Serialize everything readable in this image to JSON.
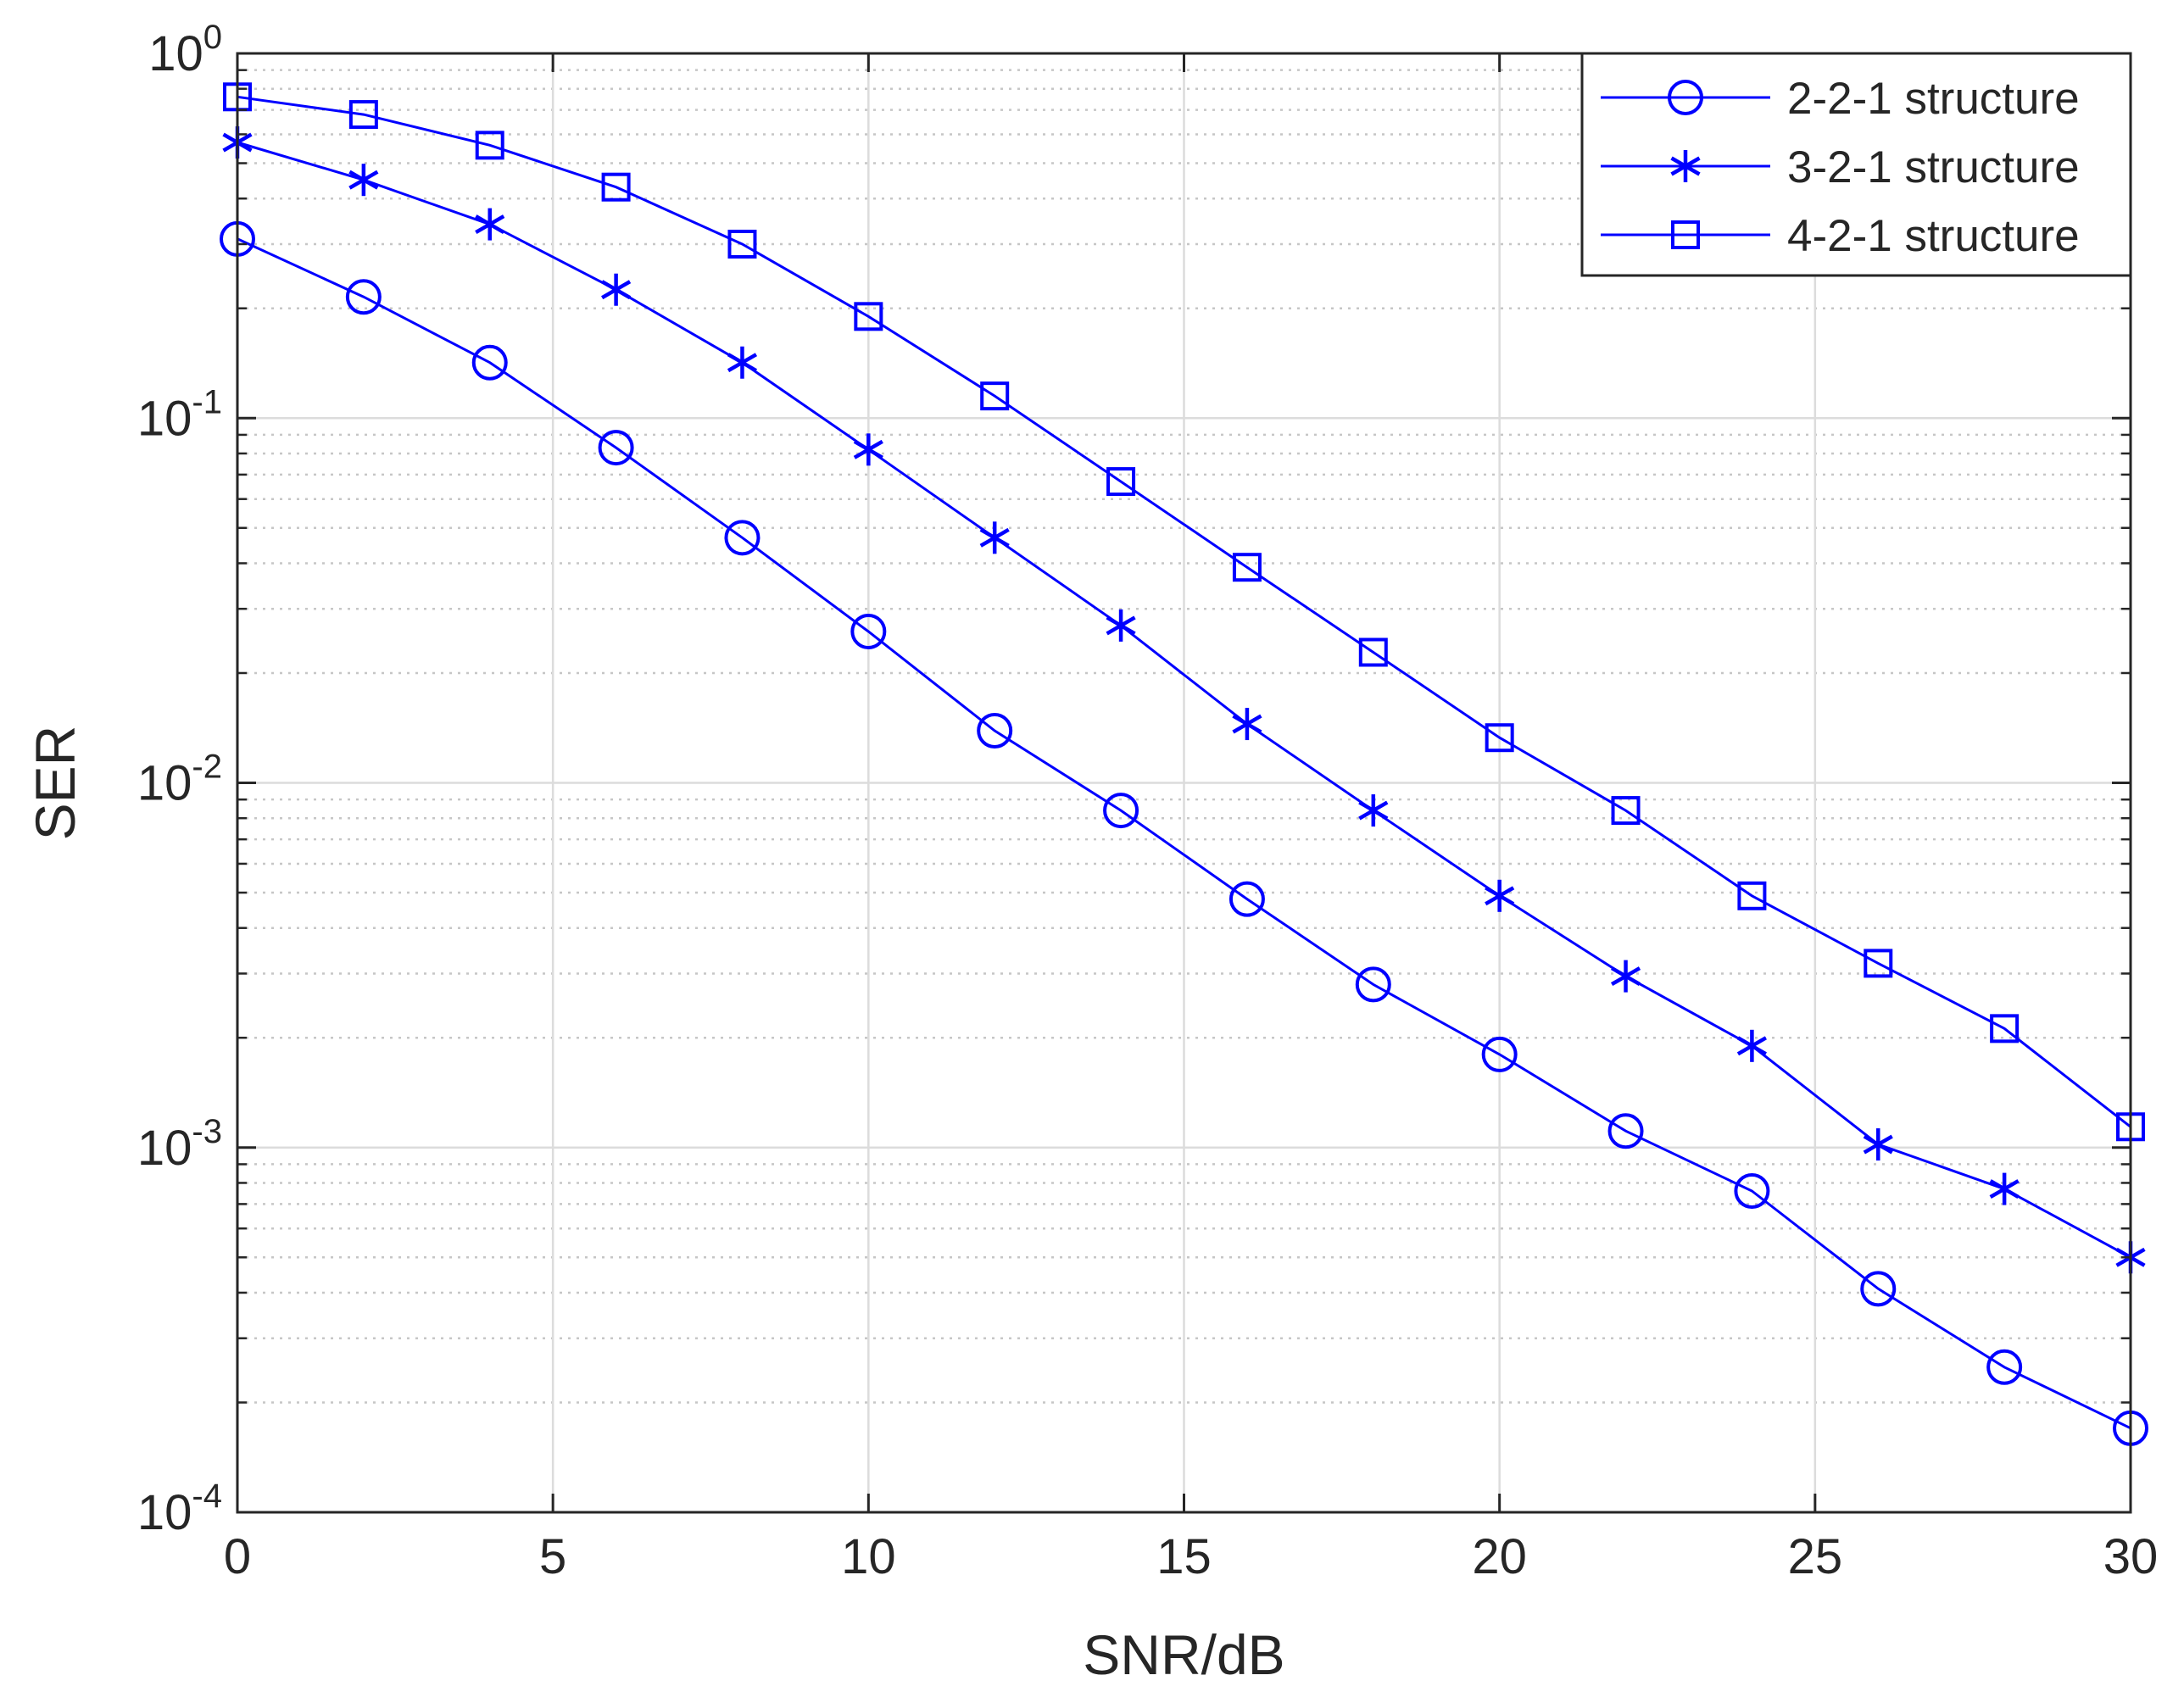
{
  "chart_data": {
    "type": "line",
    "title": "",
    "xlabel": "SNR/dB",
    "ylabel": "SER",
    "xlim": [
      0,
      30
    ],
    "ylim": [
      0.0001,
      1
    ],
    "yscale": "log",
    "grid": true,
    "legend_position": "top-right",
    "line_color": "#0000ff",
    "x_ticks": [
      0,
      5,
      10,
      15,
      20,
      25,
      30
    ],
    "x_tick_labels": [
      "0",
      "5",
      "10",
      "15",
      "20",
      "25",
      "30"
    ],
    "y_ticks": [
      1,
      0.1,
      0.01,
      0.001,
      0.0001
    ],
    "y_tick_labels": [
      {
        "base": "10",
        "exp": "0"
      },
      {
        "base": "10",
        "exp": "-1"
      },
      {
        "base": "10",
        "exp": "-2"
      },
      {
        "base": "10",
        "exp": "-3"
      },
      {
        "base": "10",
        "exp": "-4"
      }
    ],
    "x": [
      0,
      2,
      4,
      6,
      8,
      10,
      12,
      14,
      16,
      18,
      20,
      22,
      24,
      26,
      28,
      30
    ],
    "series": [
      {
        "name": "2-2-1 structure",
        "marker": "circle",
        "values": [
          0.31,
          0.215,
          0.142,
          0.083,
          0.047,
          0.026,
          0.0139,
          0.0084,
          0.0048,
          0.0028,
          0.0018,
          0.00111,
          0.00076,
          0.00041,
          0.00025,
          0.00017
        ]
      },
      {
        "name": "3-2-1 structure",
        "marker": "asterisk",
        "values": [
          0.57,
          0.45,
          0.34,
          0.225,
          0.142,
          0.082,
          0.047,
          0.027,
          0.0145,
          0.0084,
          0.0049,
          0.00295,
          0.0019,
          0.00102,
          0.00077,
          0.0005
        ]
      },
      {
        "name": "4-2-1 structure",
        "marker": "square",
        "values": [
          0.76,
          0.68,
          0.56,
          0.43,
          0.3,
          0.19,
          0.115,
          0.067,
          0.039,
          0.0228,
          0.0133,
          0.0084,
          0.0049,
          0.0032,
          0.00212,
          0.00114
        ]
      }
    ]
  }
}
